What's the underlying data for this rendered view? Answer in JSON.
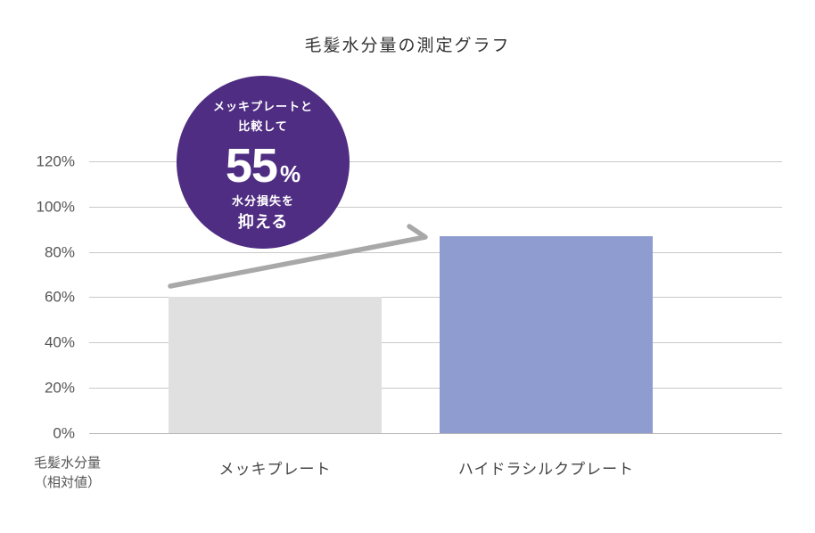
{
  "chart_data": {
    "type": "bar",
    "title": "毛髪水分量の測定グラフ",
    "categories": [
      "メッキプレート",
      "ハイドラシルクプレート"
    ],
    "values": [
      60,
      87
    ],
    "ylabel": "毛髪水分量（相対値）",
    "xlabel": "",
    "ylim": [
      0,
      120
    ],
    "yticks": [
      "0%",
      "20%",
      "40%",
      "60%",
      "80%",
      "100%",
      "120%"
    ],
    "grid": true,
    "colors": [
      "#e0e0e0",
      "#8f9ccf"
    ],
    "annotation": {
      "line1": "メッキプレートと",
      "line2": "比較して",
      "value": "55",
      "unit": "%",
      "line3": "水分損失を",
      "line4": "抑える",
      "color": "#4f2d82"
    }
  },
  "title": "毛髪水分量の測定グラフ",
  "y_axis": {
    "label_line1": "毛髪水分量",
    "label_line2": "（相対値）",
    "ticks": [
      "0%",
      "20%",
      "40%",
      "60%",
      "80%",
      "100%",
      "120%"
    ]
  },
  "x_axis": {
    "labels": [
      "メッキプレート",
      "ハイドラシルクプレート"
    ]
  }
}
